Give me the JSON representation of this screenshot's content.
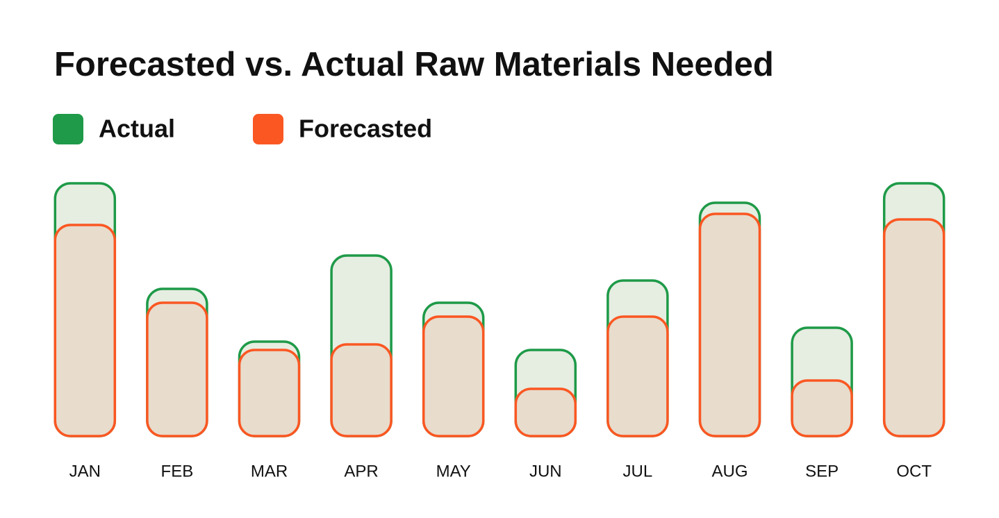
{
  "chart_data": {
    "type": "bar",
    "title": "Forecasted vs. Actual Raw Materials Needed",
    "categories": [
      "JAN",
      "FEB",
      "MAR",
      "APR",
      "MAY",
      "JUN",
      "JUL",
      "AUG",
      "SEP",
      "OCT"
    ],
    "series": [
      {
        "name": "Actual",
        "color": "#1e9a48",
        "values": [
          91,
          53,
          34,
          65,
          48,
          31,
          56,
          84,
          39,
          91
        ]
      },
      {
        "name": "Forecasted",
        "color": "#fa5722",
        "values": [
          76,
          48,
          31,
          33,
          43,
          17,
          43,
          80,
          20,
          78
        ]
      }
    ],
    "ylim": [
      0,
      100
    ]
  }
}
